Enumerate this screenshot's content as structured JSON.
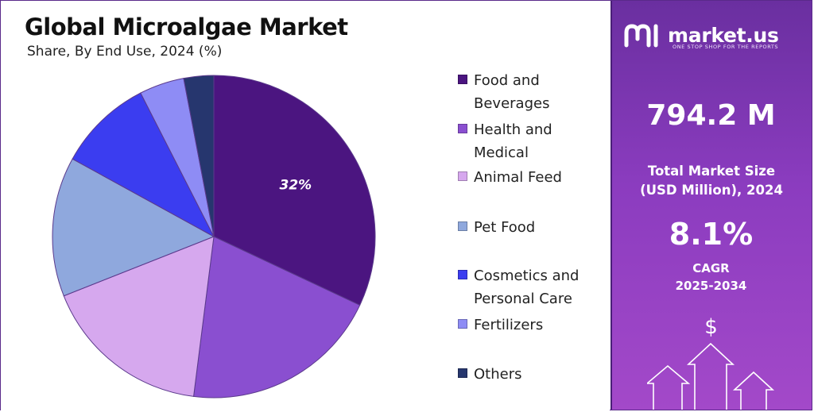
{
  "chart_data": {
    "type": "pie",
    "title": "Global Microalgae Market",
    "subtitle": "Share, By End Use, 2024 (%)",
    "slices": [
      {
        "label": "Food and Beverages",
        "value": 32,
        "color": "#4b1580",
        "data_label": "32%"
      },
      {
        "label": "Health and Medical",
        "value": 20,
        "color": "#8a4fd0",
        "data_label": ""
      },
      {
        "label": "Animal Feed",
        "value": 17,
        "color": "#d6a8ee",
        "data_label": ""
      },
      {
        "label": "Pet Food",
        "value": 14,
        "color": "#8fa8dd",
        "data_label": ""
      },
      {
        "label": "Cosmetics and Personal Care",
        "value": 9.5,
        "color": "#3b3df0",
        "data_label": ""
      },
      {
        "label": "Fertilizers",
        "value": 4.5,
        "color": "#8e8cf5",
        "data_label": ""
      },
      {
        "label": "Others",
        "value": 3,
        "color": "#26366e",
        "data_label": ""
      }
    ]
  },
  "legend": [
    {
      "label": "Food and Beverages",
      "color": "#4b1580"
    },
    {
      "label": "Health and Medical",
      "color": "#8a4fd0"
    },
    {
      "label": "Animal Feed",
      "color": "#d6a8ee"
    },
    {
      "label": "Pet Food",
      "color": "#8fa8dd"
    },
    {
      "label": "Cosmetics and Personal Care",
      "color": "#3b3df0"
    },
    {
      "label": "Fertilizers",
      "color": "#8e8cf5"
    },
    {
      "label": "Others",
      "color": "#26366e"
    }
  ],
  "brand": {
    "name": "market.us",
    "tagline": "ONE STOP SHOP FOR THE REPORTS"
  },
  "stats": {
    "market_size": "794.2 M",
    "market_size_label": "Total Market Size (USD Million), 2024",
    "cagr": "8.1%",
    "cagr_label_1": "CAGR",
    "cagr_label_2": "2025-2034",
    "currency_symbol": "$"
  }
}
